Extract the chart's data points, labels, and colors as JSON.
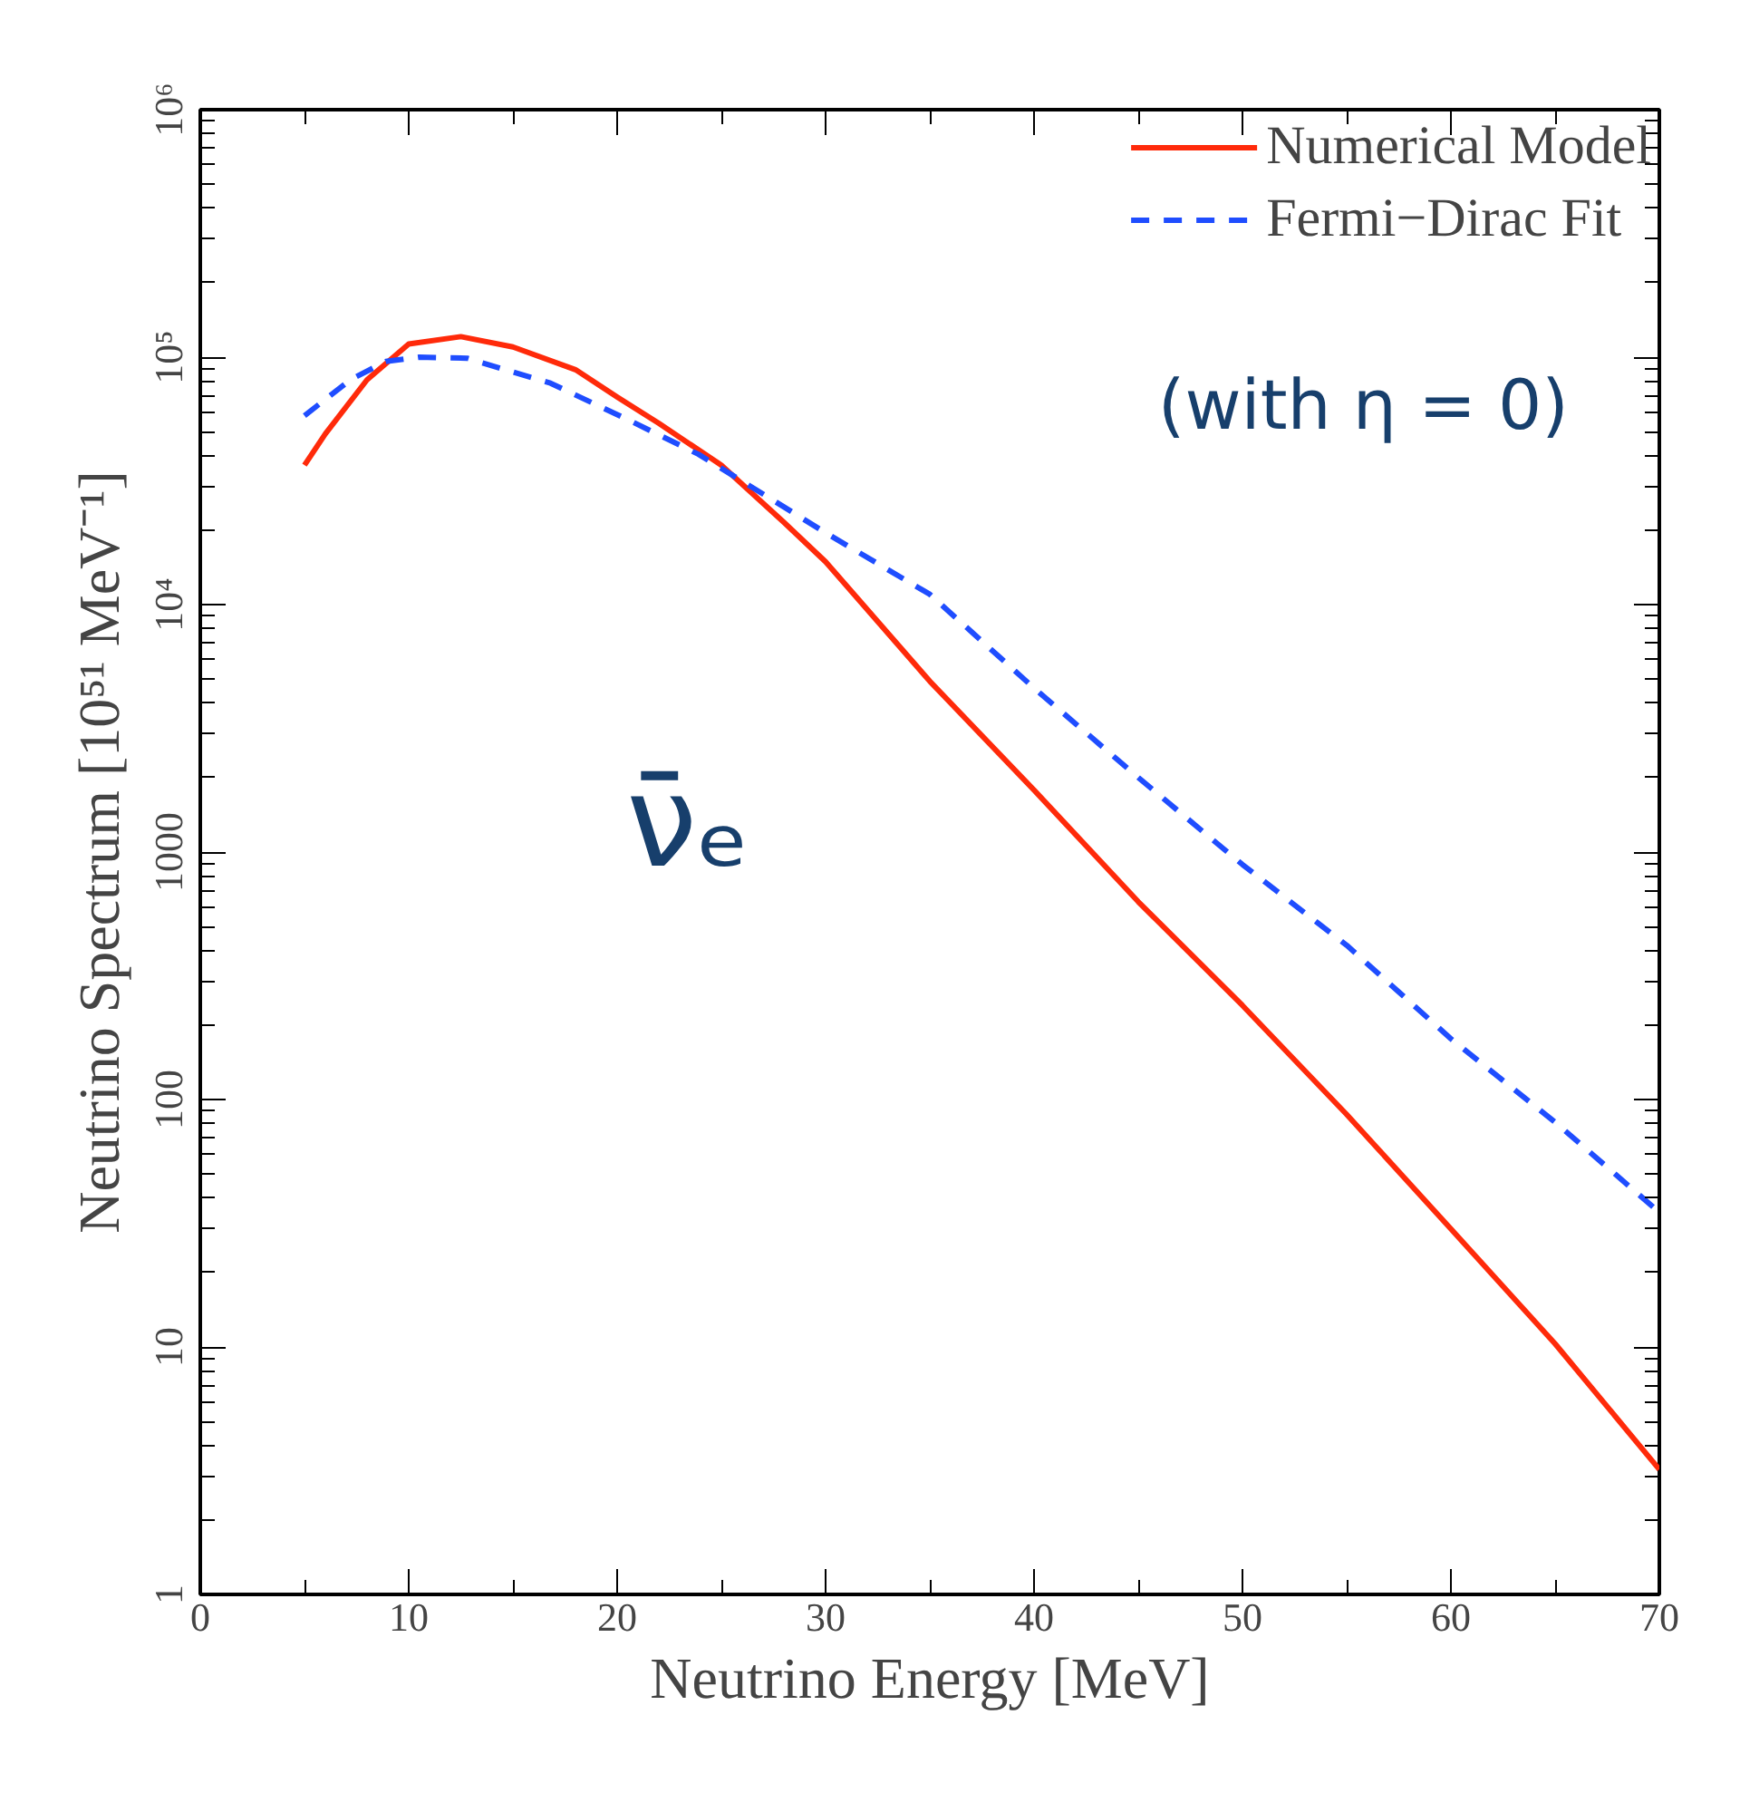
{
  "chart_data": {
    "type": "line",
    "xlabel": "Neutrino Energy [MeV]",
    "ylabel": "Neutrino Spectrum [10⁵¹ MeV⁻¹]",
    "log": "y",
    "xlim": [
      0,
      70
    ],
    "xticks": [
      0,
      10,
      20,
      30,
      40,
      50,
      60,
      70
    ],
    "ylim": [
      1,
      1000000
    ],
    "yticks": [
      1,
      10,
      100,
      1000,
      {
        "value": 10000,
        "label": "10⁴"
      },
      {
        "value": 100000,
        "label": "10⁵"
      },
      {
        "value": 1000000,
        "label": "10⁶"
      }
    ],
    "legend": "top right",
    "grid": false,
    "annotations": [
      "(with η = 0)",
      "ν̄ₑ"
    ],
    "series": [
      {
        "name": "Numerical Model",
        "color": "#ff2a0a",
        "line_style": "solid",
        "x": [
          5,
          6,
          8,
          10,
          12.5,
          15,
          18,
          20,
          22,
          25,
          28,
          30,
          35,
          40,
          45,
          50,
          55,
          60,
          65,
          70
        ],
        "values": [
          36600,
          49000,
          81000,
          113000,
          121000,
          110000,
          89000,
          69000,
          54000,
          36600,
          21500,
          14900,
          4900,
          1780,
          630,
          240,
          87,
          30,
          10.3,
          3.2
        ]
      },
      {
        "name": "Fermi−Dirac Fit",
        "color": "#1f4dff",
        "line_style": "dashed",
        "x": [
          5,
          7.2,
          8.9,
          10.5,
          12.8,
          16.8,
          20.5,
          23.9,
          27.3,
          30,
          35,
          40,
          45,
          50,
          55,
          60,
          65,
          70
        ],
        "values": [
          58000,
          81000,
          96000,
          100000,
          99000,
          78500,
          56000,
          40500,
          27000,
          19500,
          11000,
          4600,
          2000,
          890,
          420,
          176,
          81,
          35
        ]
      }
    ]
  }
}
